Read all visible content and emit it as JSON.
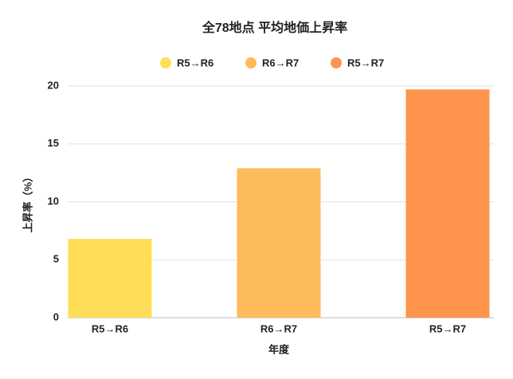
{
  "chart_data": {
    "type": "bar",
    "title": "全78地点 平均地価上昇率",
    "categories": [
      "R5→R6",
      "R6→R7",
      "R5→R7"
    ],
    "values": [
      6.8,
      12.9,
      19.7
    ],
    "colors": [
      "#ffdd57",
      "#fdbb5c",
      "#ff944d"
    ],
    "xlabel": "年度",
    "ylabel": "上昇率（%）",
    "ylim": [
      0,
      20
    ],
    "yticks": [
      0,
      5,
      10,
      15,
      20
    ],
    "grid": true,
    "legend": "top"
  }
}
